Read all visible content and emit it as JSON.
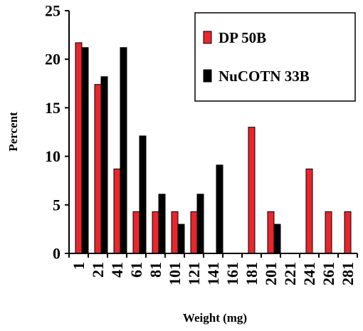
{
  "chart_data": {
    "type": "bar",
    "xlabel": "Weight (mg)",
    "ylabel": "Percent",
    "ylim": [
      0,
      25
    ],
    "yticks": [
      "0",
      "5",
      "10",
      "15",
      "20",
      "25"
    ],
    "categories": [
      "1",
      "21",
      "41",
      "61",
      "81",
      "101",
      "121",
      "141",
      "161",
      "181",
      "201",
      "221",
      "241",
      "261",
      "281"
    ],
    "series": [
      {
        "name": "DP 50B",
        "color": "#e8262c",
        "values": [
          21.7,
          17.4,
          8.7,
          4.3,
          4.3,
          4.3,
          4.3,
          0,
          0,
          13.0,
          4.3,
          0,
          8.7,
          4.3,
          4.3
        ]
      },
      {
        "name": "NuCOTN 33B",
        "color": "#000000",
        "values": [
          21.2,
          18.2,
          21.2,
          12.1,
          6.1,
          3.0,
          6.1,
          9.1,
          0,
          0,
          3.0,
          0,
          0,
          0,
          0
        ]
      }
    ],
    "grid": false,
    "legend_position": "top-right"
  }
}
